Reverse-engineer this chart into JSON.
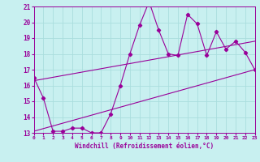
{
  "xlabel": "Windchill (Refroidissement éolien,°C)",
  "bg_color": "#c8f0f0",
  "line_color": "#990099",
  "grid_color": "#aadddd",
  "xmin": 0,
  "xmax": 23,
  "ymin": 13,
  "ymax": 21,
  "series1_x": [
    0,
    1,
    2,
    3,
    4,
    5,
    6,
    7,
    8,
    9,
    10,
    11,
    12,
    13,
    14,
    15,
    16,
    17,
    18,
    19,
    20,
    21,
    22,
    23
  ],
  "series1_y": [
    16.5,
    15.2,
    13.1,
    13.1,
    13.3,
    13.3,
    13.0,
    13.0,
    14.2,
    16.0,
    18.0,
    19.8,
    21.3,
    19.5,
    18.0,
    17.9,
    20.5,
    19.9,
    17.9,
    19.4,
    18.3,
    18.8,
    18.1,
    17.0
  ],
  "series2_x": [
    0,
    23
  ],
  "series2_y": [
    16.3,
    18.8
  ],
  "series3_x": [
    0,
    23
  ],
  "series3_y": [
    13.1,
    17.0
  ],
  "yticks": [
    13,
    14,
    15,
    16,
    17,
    18,
    19,
    20,
    21
  ],
  "xticks": [
    0,
    1,
    2,
    3,
    4,
    5,
    6,
    7,
    8,
    9,
    10,
    11,
    12,
    13,
    14,
    15,
    16,
    17,
    18,
    19,
    20,
    21,
    22,
    23
  ]
}
